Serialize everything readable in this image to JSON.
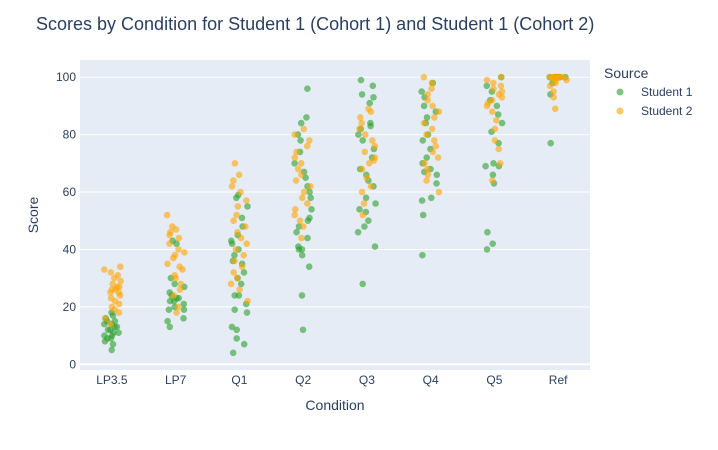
{
  "chart_data": {
    "type": "scatter",
    "title": "Scores by Condition for Student 1 (Cohort 1) and Student 1 (Cohort 2)",
    "xlabel": "Condition",
    "ylabel": "Score",
    "categories": [
      "LP3.5",
      "LP7",
      "Q1",
      "Q2",
      "Q3",
      "Q4",
      "Q5",
      "Ref"
    ],
    "ylim": [
      -2,
      106
    ],
    "yticks": [
      0,
      20,
      40,
      60,
      80,
      100
    ],
    "grid": true,
    "legend": {
      "title": "Source",
      "placement": "top-right"
    },
    "colors": {
      "plot_bg": "#e5ecf6",
      "grid": "#ffffff",
      "text": "#2a3f5f"
    },
    "series": [
      {
        "name": "Student 1",
        "color": "#2ca02c",
        "points": {
          "LP3.5": [
            5,
            7,
            8,
            9,
            9,
            10,
            10,
            11,
            11,
            12,
            12,
            13,
            13,
            14,
            14,
            15,
            15,
            16,
            17,
            18
          ],
          "LP7": [
            13,
            15,
            16,
            19,
            19,
            20,
            21,
            22,
            22,
            23,
            23,
            24,
            25,
            27,
            28,
            30,
            42,
            43
          ],
          "Q1": [
            4,
            7,
            9,
            12,
            13,
            18,
            19,
            21,
            24,
            24,
            28,
            30,
            32,
            35,
            36,
            38,
            40,
            42,
            43,
            45,
            48,
            51,
            55,
            58,
            59
          ],
          "Q2": [
            12,
            24,
            34,
            38,
            40,
            40,
            41,
            44,
            46,
            48,
            50,
            51,
            54,
            58,
            60,
            62,
            65,
            67,
            70,
            74,
            78,
            80,
            84,
            86,
            96
          ],
          "Q3": [
            28,
            41,
            46,
            48,
            50,
            53,
            54,
            56,
            58,
            62,
            64,
            66,
            68,
            72,
            75,
            78,
            80,
            82,
            83,
            84,
            91,
            93,
            94,
            97,
            99
          ],
          "Q4": [
            38,
            52,
            57,
            58,
            63,
            66,
            67,
            68,
            70,
            72,
            75,
            78,
            80,
            84,
            86,
            88,
            90,
            93,
            95,
            98
          ],
          "Q5": [
            40,
            42,
            46,
            63,
            66,
            69,
            69,
            70,
            77,
            81,
            84,
            87,
            90,
            92,
            95,
            97,
            100
          ],
          "Ref": [
            77,
            94,
            98,
            100,
            100,
            100,
            100,
            100,
            100,
            100,
            100
          ]
        }
      },
      {
        "name": "Student 2",
        "color": "#ffa500",
        "points": {
          "LP3.5": [
            14,
            16,
            18,
            19,
            20,
            21,
            22,
            23,
            24,
            25,
            25,
            26,
            26,
            27,
            27,
            28,
            29,
            30,
            31,
            32,
            33,
            34
          ],
          "LP7": [
            18,
            20,
            24,
            26,
            28,
            30,
            31,
            33,
            34,
            35,
            37,
            38,
            39,
            40,
            42,
            44,
            45,
            46,
            47,
            48,
            52
          ],
          "Q1": [
            22,
            26,
            28,
            30,
            32,
            34,
            36,
            38,
            40,
            42,
            44,
            46,
            48,
            50,
            52,
            55,
            57,
            60,
            62,
            64,
            66,
            70
          ],
          "Q2": [
            44,
            48,
            50,
            52,
            54,
            56,
            58,
            60,
            62,
            64,
            66,
            68,
            70,
            72,
            74,
            76,
            78,
            80,
            82
          ],
          "Q3": [
            52,
            56,
            60,
            62,
            65,
            68,
            70,
            71,
            72,
            74,
            76,
            78,
            80,
            82,
            84,
            86,
            88,
            89
          ],
          "Q4": [
            60,
            64,
            66,
            68,
            70,
            72,
            74,
            76,
            78,
            80,
            82,
            84,
            86,
            88,
            90,
            92,
            94,
            96,
            98,
            100
          ],
          "Q5": [
            64,
            70,
            75,
            78,
            82,
            85,
            88,
            90,
            91,
            92,
            93,
            94,
            95,
            96,
            97,
            98,
            99,
            100
          ],
          "Ref": [
            89,
            93,
            95,
            97,
            98,
            99,
            99,
            100,
            100,
            100,
            100,
            100,
            100,
            100,
            100,
            100
          ]
        }
      }
    ]
  }
}
